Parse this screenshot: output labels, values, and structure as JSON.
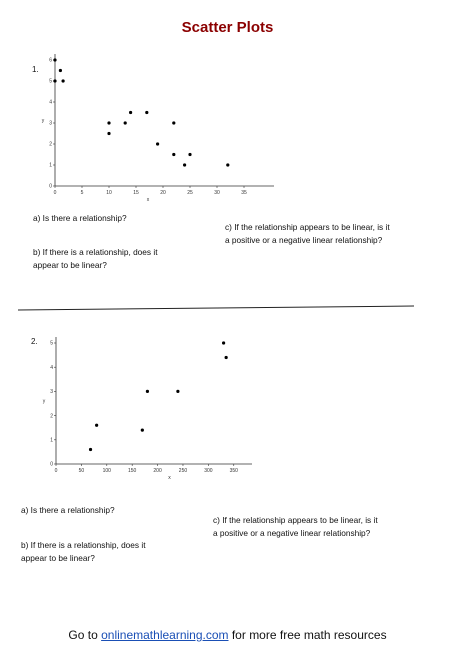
{
  "page": {
    "title": "Scatter Plots",
    "footer": {
      "prefix": "Go to ",
      "link": "onlinemathlearning.com",
      "suffix": " for more free math resources"
    }
  },
  "problems": [
    {
      "number": "1.",
      "questions": {
        "a": "a)  Is there a relationship?",
        "b1": "b)  If there is a relationship, does it",
        "b2": "appear to be linear?",
        "c1": "c)  If the relationship appears to be linear, is it",
        "c2": "a positive or a negative linear relationship?"
      }
    },
    {
      "number": "2.",
      "questions": {
        "a": "a)  Is there a relationship?",
        "b1": "b)  If there is a relationship, does it",
        "b2": "appear to be linear?",
        "c1": "c)  If the relationship appears to be linear, is it",
        "c2": "a positive or a negative linear relationship?"
      }
    }
  ],
  "chart_data": [
    {
      "type": "scatter",
      "xlabel": "x",
      "ylabel": "y",
      "xlim": [
        0,
        40
      ],
      "ylim": [
        0,
        6
      ],
      "xticks": [
        0,
        5,
        10,
        15,
        20,
        25,
        30,
        35
      ],
      "yticks": [
        0,
        1,
        2,
        3,
        4,
        5,
        6
      ],
      "grid": false,
      "points": [
        {
          "x": 0,
          "y": 6
        },
        {
          "x": 0,
          "y": 5
        },
        {
          "x": 1,
          "y": 5.5
        },
        {
          "x": 1.5,
          "y": 5
        },
        {
          "x": 10,
          "y": 3
        },
        {
          "x": 10,
          "y": 2.5
        },
        {
          "x": 13,
          "y": 3
        },
        {
          "x": 14,
          "y": 3.5
        },
        {
          "x": 17,
          "y": 3.5
        },
        {
          "x": 19,
          "y": 2
        },
        {
          "x": 22,
          "y": 3
        },
        {
          "x": 22,
          "y": 1.5
        },
        {
          "x": 24,
          "y": 1
        },
        {
          "x": 25,
          "y": 1.5
        },
        {
          "x": 32,
          "y": 1
        }
      ]
    },
    {
      "type": "scatter",
      "xlabel": "x",
      "ylabel": "y",
      "xlim": [
        0,
        380
      ],
      "ylim": [
        0,
        5
      ],
      "xticks": [
        0,
        50,
        100,
        150,
        200,
        250,
        300,
        350
      ],
      "yticks": [
        0,
        1,
        2,
        3,
        4,
        5
      ],
      "grid": false,
      "points": [
        {
          "x": 68,
          "y": 0.6
        },
        {
          "x": 80,
          "y": 1.6
        },
        {
          "x": 170,
          "y": 1.4
        },
        {
          "x": 180,
          "y": 3
        },
        {
          "x": 240,
          "y": 3
        },
        {
          "x": 330,
          "y": 5
        },
        {
          "x": 335,
          "y": 4.4
        }
      ]
    }
  ]
}
